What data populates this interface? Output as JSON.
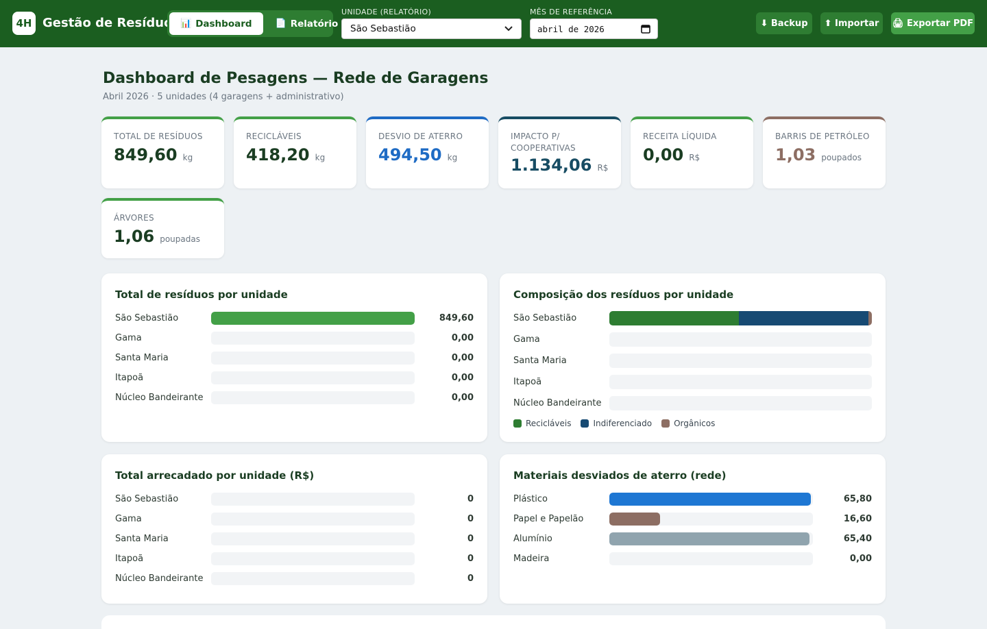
{
  "app": {
    "logo": "4H",
    "title": "Gestão de Resíduos"
  },
  "nav": {
    "tabs": [
      {
        "label": "Dashboard",
        "icon": "📊",
        "icon_name": "bar-chart-icon",
        "active": true
      },
      {
        "label": "Relatório",
        "icon": "📄",
        "icon_name": "document-icon",
        "active": false
      }
    ]
  },
  "filters": {
    "unit_label": "UNIDADE (RELATÓRIO)",
    "unit_value": "São Sebastião",
    "month_label": "MÊS DE REFERÊNCIA",
    "month_value": "abril de 2026"
  },
  "actions": {
    "backup": "⬇ Backup",
    "import": "⬆ Importar",
    "export": "🖨 Exportar PDF"
  },
  "header": {
    "title": "Dashboard de Pesagens — Rede de Garagens",
    "subtitle": "Abril 2026 · 5 unidades (4 garagens + administrativo)"
  },
  "kpis": [
    {
      "label": "Total de resíduos",
      "value": "849,60",
      "unit": "kg",
      "color": "#1a3d22",
      "accent": "#43a047"
    },
    {
      "label": "Recicláveis",
      "value": "418,20",
      "unit": "kg",
      "color": "#1a3d22",
      "accent": "#43a047"
    },
    {
      "label": "Desvio de aterro",
      "value": "494,50",
      "unit": "kg",
      "color": "#1e6bc4",
      "accent": "#1e6bc4"
    },
    {
      "label": "Impacto p/ cooperativas",
      "value": "1.134,06",
      "unit": "R$",
      "color": "#174c63",
      "accent": "#174c63"
    },
    {
      "label": "Receita líquida",
      "value": "0,00",
      "unit": "R$",
      "color": "#1a3d22",
      "accent": "#43a047"
    },
    {
      "label": "Barris de petróleo",
      "value": "1,03",
      "unit": "poupados",
      "color": "#8d6e63",
      "accent": "#8d6e63"
    },
    {
      "label": "Árvores",
      "value": "1,06",
      "unit": "poupadas",
      "color": "#1a3d22",
      "accent": "#43a047"
    }
  ],
  "panels": {
    "total_por_unidade": {
      "title": "Total de resíduos por unidade",
      "rows": [
        {
          "label": "São Sebastião",
          "value": 849.6,
          "display": "849,60"
        },
        {
          "label": "Gama",
          "value": 0,
          "display": "0,00"
        },
        {
          "label": "Santa Maria",
          "value": 0,
          "display": "0,00"
        },
        {
          "label": "Itapoã",
          "value": 0,
          "display": "0,00"
        },
        {
          "label": "Núcleo Bandeirante",
          "value": 0,
          "display": "0,00"
        }
      ],
      "color": "#43a047"
    },
    "composicao": {
      "title": "Composição dos resíduos por unidade",
      "rows": [
        {
          "label": "São Sebastião",
          "reciclaveis": 418.2,
          "indiferenciado": 421.4,
          "organicos": 10.0
        },
        {
          "label": "Gama",
          "reciclaveis": 0,
          "indiferenciado": 0,
          "organicos": 0
        },
        {
          "label": "Santa Maria",
          "reciclaveis": 0,
          "indiferenciado": 0,
          "organicos": 0
        },
        {
          "label": "Itapoã",
          "reciclaveis": 0,
          "indiferenciado": 0,
          "organicos": 0
        },
        {
          "label": "Núcleo Bandeirante",
          "reciclaveis": 0,
          "indiferenciado": 0,
          "organicos": 0
        }
      ],
      "legend": [
        {
          "label": "Recicláveis",
          "color": "#2e7d32"
        },
        {
          "label": "Indiferenciado",
          "color": "#174a73"
        },
        {
          "label": "Orgânicos",
          "color": "#8d6e63"
        }
      ]
    },
    "arrecadado": {
      "title": "Total arrecadado por unidade (R$)",
      "rows": [
        {
          "label": "São Sebastião",
          "value": 0,
          "display": "0"
        },
        {
          "label": "Gama",
          "value": 0,
          "display": "0"
        },
        {
          "label": "Santa Maria",
          "value": 0,
          "display": "0"
        },
        {
          "label": "Itapoã",
          "value": 0,
          "display": "0"
        },
        {
          "label": "Núcleo Bandeirante",
          "value": 0,
          "display": "0"
        }
      ],
      "color": "#43a047"
    },
    "materiais": {
      "title": "Materiais desviados de aterro (rede)",
      "rows": [
        {
          "label": "Plástico",
          "value": 65.8,
          "display": "65,80",
          "color": "#1e77d3"
        },
        {
          "label": "Papel e Papelão",
          "value": 16.6,
          "display": "16,60",
          "color": "#8d6e63"
        },
        {
          "label": "Alumínio",
          "value": 65.4,
          "display": "65,40",
          "color": "#90a4ae"
        },
        {
          "label": "Madeira",
          "value": 0,
          "display": "0,00",
          "color": "#a1887f"
        }
      ]
    }
  }
}
